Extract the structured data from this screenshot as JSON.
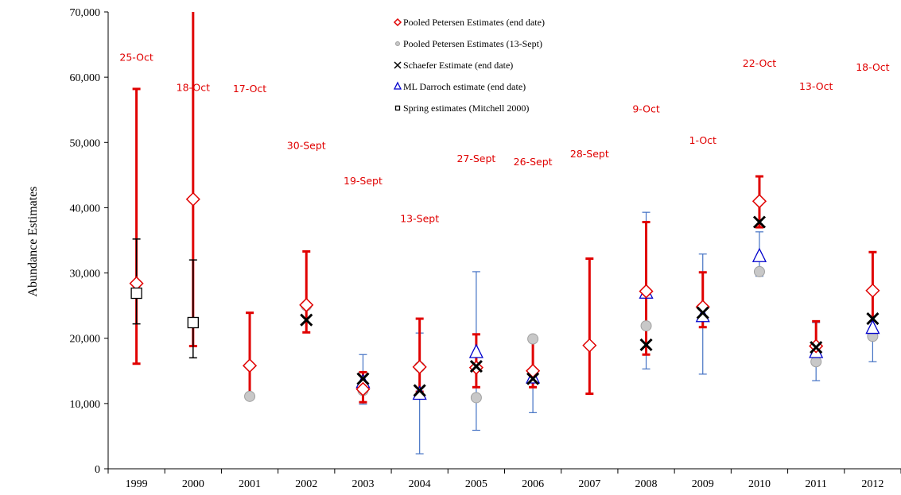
{
  "chart_data": {
    "type": "scatter",
    "ylabel": "Abundance Estimates",
    "xlabel": "",
    "ylim": [
      0,
      70000
    ],
    "yticks": [
      0,
      10000,
      20000,
      30000,
      40000,
      50000,
      60000,
      70000
    ],
    "ytick_labels": [
      "0",
      "10,000",
      "20,000",
      "30,000",
      "40,000",
      "50,000",
      "60,000",
      "70,000"
    ],
    "categories": [
      "1999",
      "2000",
      "2001",
      "2002",
      "2003",
      "2004",
      "2005",
      "2006",
      "2007",
      "2008",
      "2009",
      "2010",
      "2011",
      "2012"
    ],
    "grid": false,
    "legend_position": "top-center",
    "series": [
      {
        "name": "Pooled Petersen Estimates (end date)",
        "marker": "diamond",
        "color": "#e00000",
        "values": [
          28400,
          41300,
          15800,
          25100,
          12200,
          15600,
          15500,
          15000,
          18900,
          27200,
          24800,
          41000,
          18800,
          27300
        ],
        "ci_lower": [
          16100,
          18800,
          11200,
          20900,
          10200,
          11800,
          12500,
          12500,
          11500,
          17500,
          21700,
          37000,
          17500,
          21000
        ],
        "ci_upper": [
          58200,
          70000,
          23900,
          33300,
          14800,
          23000,
          20600,
          19800,
          32200,
          37800,
          30100,
          44800,
          22600,
          33200
        ]
      },
      {
        "name": "Pooled Petersen Estimates (13-Sept)",
        "marker": "circle",
        "color": "#a6a6a6",
        "values": [
          null,
          null,
          11100,
          25000,
          12000,
          15600,
          10900,
          19900,
          null,
          21900,
          null,
          30200,
          16400,
          20300
        ]
      },
      {
        "name": "Schaefer Estimate (end date)",
        "marker": "x",
        "color": "#000000",
        "values": [
          null,
          null,
          null,
          22800,
          13800,
          12000,
          15700,
          13800,
          null,
          19000,
          23900,
          37800,
          18600,
          23000
        ]
      },
      {
        "name": "ML Darroch estimate (end date)",
        "marker": "triangle",
        "color": "#0000cc",
        "values": [
          null,
          null,
          null,
          null,
          13300,
          11500,
          17900,
          14000,
          null,
          27000,
          23400,
          32600,
          17900,
          21600
        ],
        "ci_lower": [
          null,
          null,
          null,
          null,
          9900,
          2300,
          5900,
          8600,
          null,
          15300,
          14500,
          29500,
          13500,
          16400
        ],
        "ci_upper": [
          null,
          null,
          null,
          null,
          17500,
          20800,
          30200,
          19500,
          null,
          39300,
          32900,
          36300,
          22400,
          27200
        ]
      },
      {
        "name": "Spring estimates (Mitchell 2000)",
        "marker": "square",
        "color": "#000000",
        "values": [
          26900,
          22400,
          null,
          null,
          null,
          null,
          null,
          null,
          null,
          null,
          null,
          null,
          null,
          null
        ],
        "ci_lower": [
          22200,
          17000,
          null,
          null,
          null,
          null,
          null,
          null,
          null,
          null,
          null,
          null,
          null,
          null
        ],
        "ci_upper": [
          35200,
          32000,
          null,
          null,
          null,
          null,
          null,
          null,
          null,
          null,
          null,
          null,
          null,
          null
        ]
      }
    ],
    "date_labels": [
      {
        "category": "1999",
        "text": "25-Oct",
        "y": 62500
      },
      {
        "category": "2000",
        "text": "18-Oct",
        "y": 57900
      },
      {
        "category": "2001",
        "text": "17-Oct",
        "y": 57700
      },
      {
        "category": "2002",
        "text": "30-Sept",
        "y": 49000
      },
      {
        "category": "2003",
        "text": "19-Sept",
        "y": 43600
      },
      {
        "category": "2004",
        "text": "13-Sept",
        "y": 37800
      },
      {
        "category": "2005",
        "text": "27-Sept",
        "y": 47000
      },
      {
        "category": "2006",
        "text": "26-Sept",
        "y": 46500
      },
      {
        "category": "2007",
        "text": "28-Sept",
        "y": 47700
      },
      {
        "category": "2008",
        "text": "9-Oct",
        "y": 54600
      },
      {
        "category": "2009",
        "text": "1-Oct",
        "y": 49800
      },
      {
        "category": "2010",
        "text": "22-Oct",
        "y": 61600
      },
      {
        "category": "2011",
        "text": "13-Oct",
        "y": 58100
      },
      {
        "category": "2012",
        "text": "18-Oct",
        "y": 61000
      }
    ]
  }
}
